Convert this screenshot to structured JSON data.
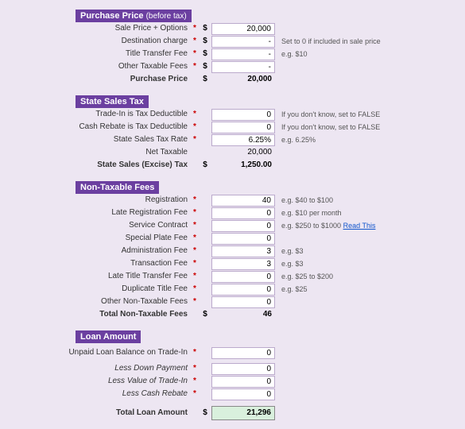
{
  "sections": {
    "purchase": {
      "title": "Purchase Price",
      "subtitle": "(before tax)",
      "rows": [
        {
          "label": "Sale Price + Options",
          "marker": "*",
          "cur": "$",
          "val": "20,000",
          "hint": ""
        },
        {
          "label": "Destination charge",
          "marker": "*",
          "cur": "$",
          "val": "-",
          "hint": "Set to 0 if included in sale price"
        },
        {
          "label": "Title Transfer Fee",
          "marker": "*",
          "cur": "$",
          "val": "-",
          "hint": "e.g. $10"
        },
        {
          "label": "Other Taxable Fees",
          "marker": "*",
          "cur": "$",
          "val": "-",
          "hint": ""
        }
      ],
      "total": {
        "label": "Purchase Price",
        "cur": "$",
        "val": "20,000"
      }
    },
    "tax": {
      "title": "State Sales Tax",
      "rows": [
        {
          "label": "Trade-In is Tax Deductible",
          "marker": "*",
          "cur": "",
          "val": "0",
          "hint": "If you don't know, set to FALSE"
        },
        {
          "label": "Cash Rebate is Tax Deductible",
          "marker": "*",
          "cur": "",
          "val": "0",
          "hint": "If you don't know, set to FALSE"
        },
        {
          "label": "State Sales Tax Rate",
          "marker": "*",
          "cur": "",
          "val": "6.25%",
          "hint": "e.g. 6.25%"
        },
        {
          "label": "Net Taxable",
          "marker": "",
          "cur": "",
          "val": "20,000",
          "hint": "",
          "plain": true
        }
      ],
      "total": {
        "label": "State Sales (Excise) Tax",
        "cur": "$",
        "val": "1,250.00"
      }
    },
    "fees": {
      "title": "Non-Taxable Fees",
      "rows": [
        {
          "label": "Registration",
          "marker": "*",
          "cur": "",
          "val": "40",
          "hint": "e.g. $40 to $100"
        },
        {
          "label": "Late Registration Fee",
          "marker": "*",
          "cur": "",
          "val": "0",
          "hint": "e.g. $10 per month"
        },
        {
          "label": "Service Contract",
          "marker": "*",
          "cur": "",
          "val": "0",
          "hint": "e.g. $250 to $1000",
          "link": "Read This"
        },
        {
          "label": "Special Plate Fee",
          "marker": "*",
          "cur": "",
          "val": "0",
          "hint": ""
        },
        {
          "label": "Administration Fee",
          "marker": "*",
          "cur": "",
          "val": "3",
          "hint": "e.g. $3"
        },
        {
          "label": "Transaction Fee",
          "marker": "*",
          "cur": "",
          "val": "3",
          "hint": "e.g. $3"
        },
        {
          "label": "Late Title Transfer Fee",
          "marker": "*",
          "cur": "",
          "val": "0",
          "hint": "e.g. $25 to $200"
        },
        {
          "label": "Duplicate Title Fee",
          "marker": "*",
          "cur": "",
          "val": "0",
          "hint": "e.g. $25"
        },
        {
          "label": "Other Non-Taxable Fees",
          "marker": "*",
          "cur": "",
          "val": "0",
          "hint": ""
        }
      ],
      "total": {
        "label": "Total Non-Taxable Fees",
        "cur": "$",
        "val": "46"
      }
    },
    "loan": {
      "title": "Loan Amount",
      "rows": [
        {
          "label": "Unpaid Loan Balance on Trade-In",
          "marker": "*",
          "cur": "",
          "val": "0",
          "hint": ""
        }
      ],
      "less": [
        {
          "label": "Less Down Payment",
          "marker": "*",
          "cur": "",
          "val": "0"
        },
        {
          "label": "Less Value of Trade-In",
          "marker": "*",
          "cur": "",
          "val": "0"
        },
        {
          "label": "Less Cash Rebate",
          "marker": "*",
          "cur": "",
          "val": "0"
        }
      ],
      "total": {
        "label": "Total Loan Amount",
        "cur": "$",
        "val": "21,296"
      }
    }
  }
}
